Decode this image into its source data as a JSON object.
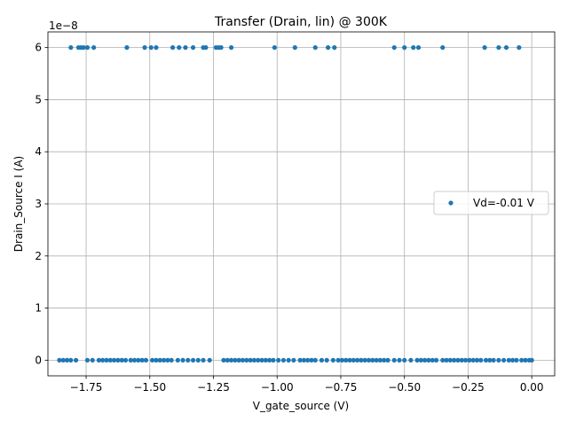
{
  "chart_data": {
    "type": "scatter",
    "title": "Transfer (Drain, lin) @ 300K",
    "xlabel": "V_gate_source (V)",
    "ylabel": "Drain_Source I (A)",
    "y_offset_text": "1e−8",
    "xlim": [
      -1.9,
      0.09
    ],
    "ylim": [
      -3e-09,
      6.3e-08
    ],
    "x_ticks": [
      -1.75,
      -1.5,
      -1.25,
      -1.0,
      -0.75,
      -0.5,
      -0.25,
      0.0
    ],
    "x_tick_labels": [
      "−1.75",
      "−1.50",
      "−1.25",
      "−1.00",
      "−0.75",
      "−0.50",
      "−0.25",
      "0.00"
    ],
    "y_ticks": [
      0,
      1e-08,
      2e-08,
      3e-08,
      4e-08,
      5e-08,
      6e-08
    ],
    "y_tick_labels": [
      "0",
      "1",
      "2",
      "3",
      "4",
      "5",
      "6"
    ],
    "grid": true,
    "legend_position": "center-right",
    "series": [
      {
        "name": "Vd=-0.01 V",
        "color": "#1f77b4",
        "marker": "circle",
        "points": [
          [
            -1.81,
            6e-08
          ],
          [
            -1.78,
            6e-08
          ],
          [
            -1.77,
            6e-08
          ],
          [
            -1.76,
            6e-08
          ],
          [
            -1.745,
            6e-08
          ],
          [
            -1.72,
            6e-08
          ],
          [
            -1.59,
            6e-08
          ],
          [
            -1.52,
            6e-08
          ],
          [
            -1.495,
            6e-08
          ],
          [
            -1.475,
            6e-08
          ],
          [
            -1.41,
            6e-08
          ],
          [
            -1.385,
            6e-08
          ],
          [
            -1.36,
            6e-08
          ],
          [
            -1.33,
            6e-08
          ],
          [
            -1.29,
            6e-08
          ],
          [
            -1.28,
            6e-08
          ],
          [
            -1.24,
            6e-08
          ],
          [
            -1.23,
            6e-08
          ],
          [
            -1.22,
            6e-08
          ],
          [
            -1.18,
            6e-08
          ],
          [
            -1.01,
            6e-08
          ],
          [
            -0.93,
            6e-08
          ],
          [
            -0.85,
            6e-08
          ],
          [
            -0.8,
            6e-08
          ],
          [
            -0.775,
            6e-08
          ],
          [
            -0.54,
            6e-08
          ],
          [
            -0.5,
            6e-08
          ],
          [
            -0.465,
            6e-08
          ],
          [
            -0.445,
            6e-08
          ],
          [
            -0.35,
            6e-08
          ],
          [
            -0.185,
            6e-08
          ],
          [
            -0.13,
            6e-08
          ],
          [
            -0.1,
            6e-08
          ],
          [
            -0.05,
            6e-08
          ],
          [
            -1.855,
            0
          ],
          [
            -1.84,
            0
          ],
          [
            -1.825,
            0
          ],
          [
            -1.81,
            0
          ],
          [
            -1.79,
            0
          ],
          [
            -1.745,
            0
          ],
          [
            -1.725,
            0
          ],
          [
            -1.7,
            0
          ],
          [
            -1.685,
            0
          ],
          [
            -1.67,
            0
          ],
          [
            -1.655,
            0
          ],
          [
            -1.64,
            0
          ],
          [
            -1.625,
            0
          ],
          [
            -1.61,
            0
          ],
          [
            -1.595,
            0
          ],
          [
            -1.575,
            0
          ],
          [
            -1.56,
            0
          ],
          [
            -1.545,
            0
          ],
          [
            -1.53,
            0
          ],
          [
            -1.515,
            0
          ],
          [
            -1.49,
            0
          ],
          [
            -1.475,
            0
          ],
          [
            -1.46,
            0
          ],
          [
            -1.445,
            0
          ],
          [
            -1.43,
            0
          ],
          [
            -1.415,
            0
          ],
          [
            -1.39,
            0
          ],
          [
            -1.37,
            0
          ],
          [
            -1.35,
            0
          ],
          [
            -1.33,
            0
          ],
          [
            -1.31,
            0
          ],
          [
            -1.29,
            0
          ],
          [
            -1.265,
            0
          ],
          [
            -1.21,
            0
          ],
          [
            -1.195,
            0
          ],
          [
            -1.18,
            0
          ],
          [
            -1.165,
            0
          ],
          [
            -1.15,
            0
          ],
          [
            -1.135,
            0
          ],
          [
            -1.12,
            0
          ],
          [
            -1.105,
            0
          ],
          [
            -1.09,
            0
          ],
          [
            -1.075,
            0
          ],
          [
            -1.06,
            0
          ],
          [
            -1.045,
            0
          ],
          [
            -1.03,
            0
          ],
          [
            -1.015,
            0
          ],
          [
            -0.995,
            0
          ],
          [
            -0.975,
            0
          ],
          [
            -0.955,
            0
          ],
          [
            -0.935,
            0
          ],
          [
            -0.91,
            0
          ],
          [
            -0.895,
            0
          ],
          [
            -0.88,
            0
          ],
          [
            -0.865,
            0
          ],
          [
            -0.85,
            0
          ],
          [
            -0.825,
            0
          ],
          [
            -0.805,
            0
          ],
          [
            -0.78,
            0
          ],
          [
            -0.76,
            0
          ],
          [
            -0.745,
            0
          ],
          [
            -0.73,
            0
          ],
          [
            -0.715,
            0
          ],
          [
            -0.7,
            0
          ],
          [
            -0.685,
            0
          ],
          [
            -0.67,
            0
          ],
          [
            -0.655,
            0
          ],
          [
            -0.64,
            0
          ],
          [
            -0.625,
            0
          ],
          [
            -0.61,
            0
          ],
          [
            -0.595,
            0
          ],
          [
            -0.58,
            0
          ],
          [
            -0.565,
            0
          ],
          [
            -0.54,
            0
          ],
          [
            -0.52,
            0
          ],
          [
            -0.5,
            0
          ],
          [
            -0.475,
            0
          ],
          [
            -0.45,
            0
          ],
          [
            -0.435,
            0
          ],
          [
            -0.42,
            0
          ],
          [
            -0.405,
            0
          ],
          [
            -0.39,
            0
          ],
          [
            -0.375,
            0
          ],
          [
            -0.35,
            0
          ],
          [
            -0.335,
            0
          ],
          [
            -0.32,
            0
          ],
          [
            -0.305,
            0
          ],
          [
            -0.29,
            0
          ],
          [
            -0.275,
            0
          ],
          [
            -0.26,
            0
          ],
          [
            -0.245,
            0
          ],
          [
            -0.23,
            0
          ],
          [
            -0.215,
            0
          ],
          [
            -0.2,
            0
          ],
          [
            -0.18,
            0
          ],
          [
            -0.165,
            0
          ],
          [
            -0.15,
            0
          ],
          [
            -0.13,
            0
          ],
          [
            -0.11,
            0
          ],
          [
            -0.09,
            0
          ],
          [
            -0.075,
            0
          ],
          [
            -0.06,
            0
          ],
          [
            -0.04,
            0
          ],
          [
            -0.025,
            0
          ],
          [
            -0.01,
            0
          ],
          [
            0.0,
            0
          ]
        ]
      }
    ]
  }
}
